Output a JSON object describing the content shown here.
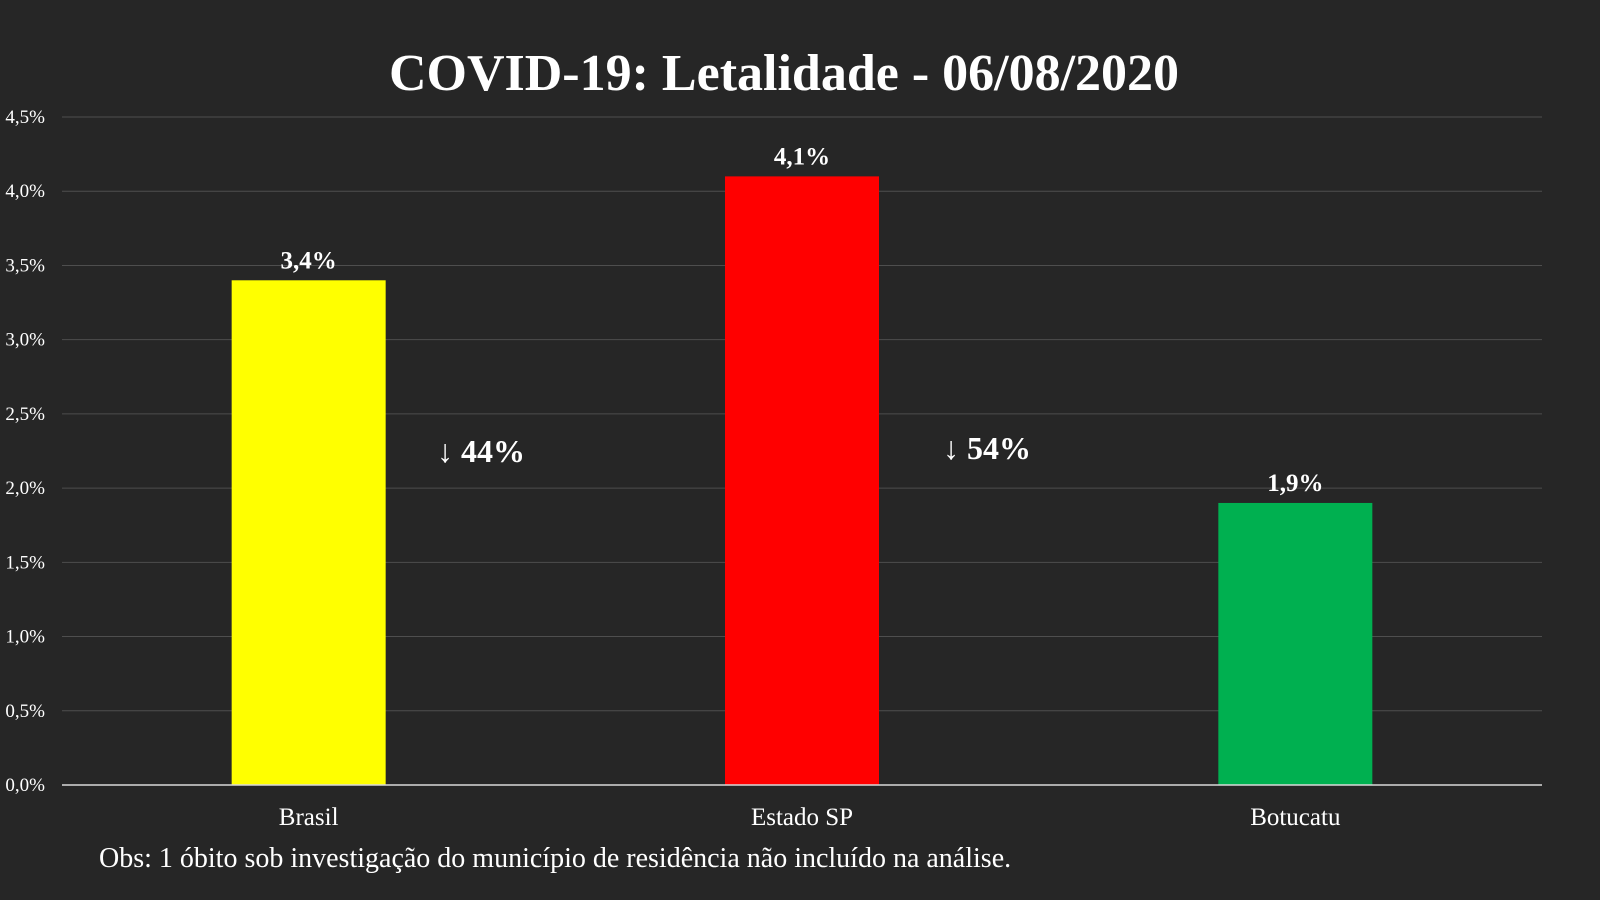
{
  "chart_data": {
    "type": "bar",
    "title": "COVID-19: Letalidade - 06/08/2020",
    "categories": [
      "Brasil",
      "Estado SP",
      "Botucatu"
    ],
    "values": [
      3.4,
      4.1,
      1.9
    ],
    "data_labels": [
      "3,4%",
      "4,1%",
      "1,9%"
    ],
    "colors": [
      "#ffff00",
      "#ff0000",
      "#00b050"
    ],
    "ylim": [
      0,
      4.5
    ],
    "yticks": [
      0,
      0.5,
      1,
      1.5,
      2,
      2.5,
      3,
      3.5,
      4,
      4.5
    ],
    "ytick_labels": [
      "0,0%",
      "0,5%",
      "1,0%",
      "1,5%",
      "2,0%",
      "2,5%",
      "3,0%",
      "3,5%",
      "4,0%",
      "4,5%"
    ],
    "grid": true,
    "annotations": [
      "↓ 44%",
      "↓ 54%"
    ]
  },
  "footnote": "Obs: 1 óbito sob investigação do município de residência não incluído na análise."
}
